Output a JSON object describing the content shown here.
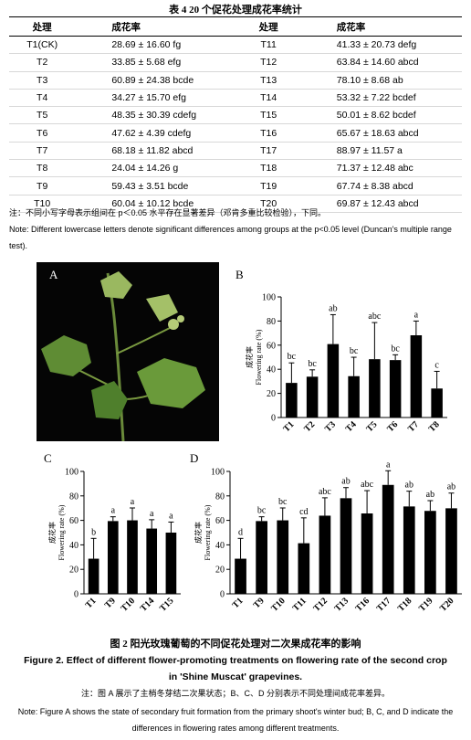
{
  "table": {
    "title": "表 4 20 个促花处理成花率统计",
    "header": [
      "处理",
      "成花率",
      "处理",
      "成花率"
    ],
    "rows": [
      [
        "T1(CK)",
        "28.69 ± 16.60 fg",
        "T11",
        "41.33 ± 20.73 defg"
      ],
      [
        "T2",
        "33.85 ± 5.68 efg",
        "T12",
        "63.84 ± 14.60 abcd"
      ],
      [
        "T3",
        "60.89 ± 24.38 bcde",
        "T13",
        "78.10 ± 8.68 ab"
      ],
      [
        "T4",
        "34.27 ± 15.70 efg",
        "T14",
        "53.32 ± 7.22 bcdef"
      ],
      [
        "T5",
        "48.35 ± 30.39 cdefg",
        "T15",
        "50.01 ± 8.62 bcdef"
      ],
      [
        "T6",
        "47.62 ± 4.39 cdefg",
        "T16",
        "65.67 ± 18.63 abcd"
      ],
      [
        "T7",
        "68.18 ± 11.82 abcd",
        "T17",
        "88.97 ± 11.57 a"
      ],
      [
        "T8",
        "24.04 ± 14.26 g",
        "T18",
        "71.37 ± 12.48 abc"
      ],
      [
        "T9",
        "59.43 ± 3.51 bcde",
        "T19",
        "67.74 ± 8.38 abcd"
      ],
      [
        "T10",
        "60.04 ± 10.12 bcde",
        "T20",
        "69.87 ± 12.43 abcd"
      ]
    ]
  },
  "table_notes": [
    "注：不同小写字母表示组间在 p＜0.05 水平存在显著差异（邓肯多重比较检验），下同。",
    "Note: Different lowercase letters denote significant differences among groups at the p<0.05 level (Duncan's multiple range test)."
  ],
  "figure": {
    "panel_a_label": "A",
    "panels": [
      {
        "label": "B",
        "y_label_cn": "成花率",
        "y_label_en": "Flowering rate (%)",
        "categories": [
          "T1",
          "T2",
          "T3",
          "T4",
          "T5",
          "T6",
          "T7",
          "T8"
        ],
        "values": [
          28.69,
          33.85,
          60.89,
          34.27,
          48.35,
          47.62,
          68.18,
          24.04
        ],
        "errors": [
          16.6,
          5.68,
          24.38,
          15.7,
          30.39,
          4.39,
          11.82,
          14.26
        ],
        "letters": [
          "bc",
          "bc",
          "ab",
          "bc",
          "abc",
          "bc",
          "a",
          "c"
        ],
        "ylim": [
          0,
          100
        ],
        "yticks": [
          0,
          20,
          40,
          60,
          80,
          100
        ],
        "color": "#000000"
      },
      {
        "label": "C",
        "y_label_cn": "成花率",
        "y_label_en": "Flowering rate (%)",
        "categories": [
          "T1",
          "T9",
          "T10",
          "T14",
          "T15"
        ],
        "values": [
          28.69,
          59.43,
          60.04,
          53.32,
          50.01
        ],
        "errors": [
          16.6,
          3.51,
          10.12,
          7.22,
          8.62
        ],
        "letters": [
          "b",
          "a",
          "a",
          "a",
          "a"
        ],
        "ylim": [
          0,
          100
        ],
        "yticks": [
          0,
          20,
          40,
          60,
          80,
          100
        ],
        "color": "#000000"
      },
      {
        "label": "D",
        "y_label_cn": "成花率",
        "y_label_en": "Flowering rate (%)",
        "categories": [
          "T1",
          "T9",
          "T10",
          "T11",
          "T12",
          "T13",
          "T16",
          "T17",
          "T18",
          "T19",
          "T20"
        ],
        "values": [
          28.69,
          59.43,
          60.04,
          41.33,
          63.84,
          78.1,
          65.67,
          88.97,
          71.37,
          67.74,
          69.87
        ],
        "errors": [
          16.6,
          3.51,
          10.12,
          20.73,
          14.6,
          8.68,
          18.63,
          11.57,
          12.48,
          8.38,
          12.43
        ],
        "letters": [
          "d",
          "bc",
          "bc",
          "cd",
          "abc",
          "ab",
          "abc",
          "a",
          "ab",
          "ab",
          "ab"
        ],
        "ylim": [
          0,
          100
        ],
        "yticks": [
          0,
          20,
          40,
          60,
          80,
          100
        ],
        "color": "#000000"
      }
    ],
    "caption_cn": "图 2 阳光玫瑰葡萄的不同促花处理对二次果成花率的影响",
    "caption_en": "Figure 2. Effect of different flower-promoting treatments on flowering rate of the second crop in 'Shine Muscat' grapevines.",
    "note_cn": "注：图 A 展示了主梢冬芽结二次果状态；B、C、D 分别表示不同处理间成花率差异。",
    "note_en": "Note: Figure A shows the state of secondary fruit formation from the primary shoot's winter bud; B, C, and D indicate the differences in flowering rates among different treatments."
  }
}
